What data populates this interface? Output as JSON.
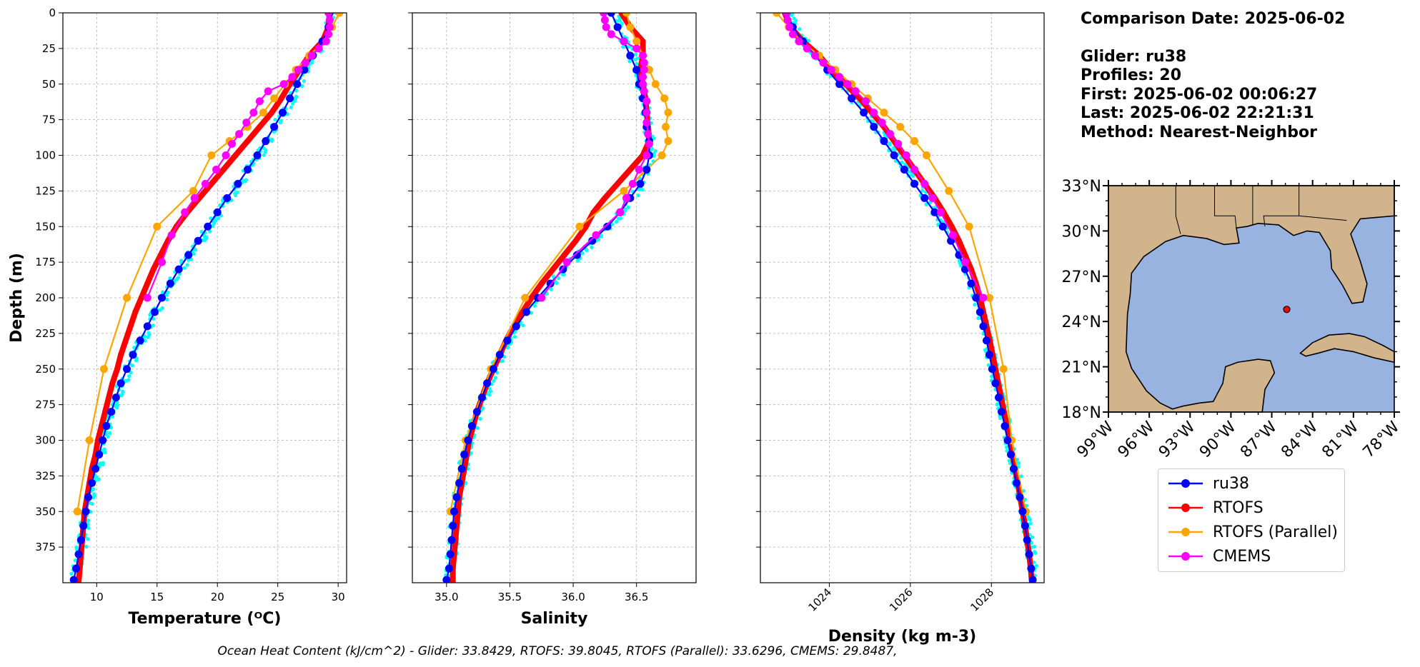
{
  "info": {
    "comparison_date": "Comparison Date: 2025-06-02",
    "glider": "Glider: ru38",
    "profiles": "Profiles: 20",
    "first": "First: 2025-06-02 00:06:27",
    "last": "Last: 2025-06-02 22:21:31",
    "method": "Method: Nearest-Neighbor"
  },
  "footer": "Ocean Heat Content (kJ/cm^2) - Glider: 33.8429,  RTOFS: 39.8045,  RTOFS (Parallel): 33.6296,  CMEMS: 29.8487,",
  "legend": [
    {
      "name": "ru38",
      "color": "#0000ff"
    },
    {
      "name": "RTOFS",
      "color": "#ff0000"
    },
    {
      "name": "RTOFS (Parallel)",
      "color": "#ffa500"
    },
    {
      "name": "CMEMS",
      "color": "#ff00ff"
    }
  ],
  "colors": {
    "glider_points": "#00ffff",
    "land": "#d2b48c",
    "ocean": "#99b3e0"
  },
  "map": {
    "lat_ticks": [
      "33°N",
      "30°N",
      "27°N",
      "24°N",
      "21°N",
      "18°N"
    ],
    "lon_ticks": [
      "99°W",
      "96°W",
      "93°W",
      "90°W",
      "87°W",
      "84°W",
      "81°W",
      "78°W"
    ],
    "extent": {
      "lon": [
        -99,
        -78
      ],
      "lat": [
        18,
        33
      ]
    },
    "glider_position": {
      "lon": -85.9,
      "lat": 24.8
    }
  },
  "chart_data": [
    {
      "type": "line",
      "xlabel": "Temperature (ᴼC)",
      "ylabel": "Depth (m)",
      "xlim": [
        7.2,
        30.7
      ],
      "ylim": [
        400,
        0
      ],
      "xticks": [
        "10",
        "15",
        "20",
        "25",
        "30"
      ],
      "xtick_values": [
        10,
        15,
        20,
        25,
        30
      ],
      "yticks": [
        "0",
        "25",
        "50",
        "75",
        "100",
        "125",
        "150",
        "175",
        "200",
        "225",
        "250",
        "275",
        "300",
        "325",
        "350",
        "375"
      ],
      "grid": true,
      "series": [
        {
          "name": "ru38",
          "depth": [
            0,
            10,
            20,
            30,
            40,
            50,
            60,
            70,
            80,
            90,
            100,
            110,
            120,
            130,
            140,
            150,
            160,
            170,
            180,
            190,
            200,
            210,
            220,
            230,
            240,
            250,
            260,
            270,
            280,
            290,
            300,
            310,
            320,
            330,
            340,
            350,
            360,
            370,
            380,
            390,
            398
          ],
          "values": [
            29.3,
            29.2,
            28.7,
            27.9,
            27.2,
            26.6,
            26.0,
            25.4,
            24.7,
            24.0,
            23.3,
            22.5,
            21.7,
            20.8,
            20.0,
            19.2,
            18.4,
            17.6,
            16.8,
            16.1,
            15.4,
            14.8,
            14.2,
            13.6,
            13.0,
            12.5,
            12.0,
            11.6,
            11.2,
            10.8,
            10.5,
            10.2,
            9.9,
            9.6,
            9.3,
            9.1,
            8.9,
            8.7,
            8.5,
            8.3,
            8.1
          ]
        },
        {
          "name": "RTOFS",
          "depth": [
            0,
            10,
            20,
            30,
            40,
            50,
            60,
            70,
            80,
            90,
            100,
            110,
            120,
            130,
            140,
            150,
            160,
            170,
            180,
            190,
            200,
            210,
            220,
            230,
            240,
            250,
            260,
            270,
            280,
            290,
            300,
            310,
            320,
            330,
            340,
            350,
            360,
            370,
            380,
            390,
            400
          ],
          "values": [
            29.3,
            29.2,
            28.7,
            27.6,
            26.8,
            26.0,
            25.3,
            24.5,
            23.5,
            22.5,
            21.5,
            20.5,
            19.5,
            18.5,
            17.5,
            16.6,
            15.9,
            15.3,
            14.7,
            14.2,
            13.7,
            13.2,
            12.8,
            12.4,
            12.0,
            11.7,
            11.3,
            11.0,
            10.7,
            10.4,
            10.1,
            9.9,
            9.6,
            9.4,
            9.2,
            9.0,
            8.9,
            8.8,
            8.7,
            8.6,
            8.5
          ]
        },
        {
          "name": "RTOFS (Parallel)",
          "depth": [
            0,
            10,
            20,
            30,
            40,
            50,
            60,
            70,
            80,
            90,
            100,
            125,
            150,
            200,
            250,
            300,
            350
          ],
          "values": [
            30.1,
            29.5,
            28.8,
            27.6,
            26.5,
            25.6,
            24.7,
            23.8,
            22.5,
            21.0,
            19.5,
            18.0,
            15.0,
            12.5,
            10.6,
            9.4,
            8.4
          ]
        },
        {
          "name": "CMEMS",
          "depth": [
            0,
            5,
            10,
            15,
            20,
            25,
            30,
            35,
            40,
            45,
            50,
            55,
            62,
            70,
            77,
            85,
            92,
            100,
            110,
            120,
            130,
            140,
            156,
            175,
            200
          ],
          "values": [
            29.2,
            29.3,
            29.3,
            29.2,
            29.0,
            28.4,
            27.8,
            27.3,
            26.7,
            26.2,
            25.5,
            24.2,
            23.5,
            23.0,
            22.4,
            21.8,
            21.2,
            20.7,
            19.9,
            19.0,
            18.1,
            17.3,
            16.2,
            15.4,
            14.2
          ]
        }
      ]
    },
    {
      "type": "line",
      "xlabel": "Salinity",
      "xlim": [
        34.73,
        36.97
      ],
      "ylim": [
        400,
        0
      ],
      "xticks": [
        "35.0",
        "35.5",
        "36.0",
        "36.5"
      ],
      "xtick_values": [
        35.0,
        35.5,
        36.0,
        36.5
      ],
      "grid": true,
      "series": [
        {
          "name": "ru38",
          "depth": [
            0,
            10,
            20,
            30,
            40,
            50,
            60,
            70,
            80,
            90,
            100,
            110,
            120,
            130,
            140,
            150,
            160,
            170,
            180,
            190,
            200,
            210,
            220,
            230,
            240,
            250,
            260,
            270,
            280,
            290,
            300,
            310,
            320,
            330,
            340,
            350,
            360,
            370,
            380,
            390,
            398
          ],
          "values": [
            36.3,
            36.35,
            36.4,
            36.45,
            36.5,
            36.52,
            36.55,
            36.57,
            36.58,
            36.6,
            36.6,
            36.58,
            36.53,
            36.45,
            36.37,
            36.27,
            36.15,
            36.03,
            35.92,
            35.82,
            35.72,
            35.63,
            35.55,
            35.48,
            35.42,
            35.37,
            35.32,
            35.28,
            35.24,
            35.2,
            35.17,
            35.14,
            35.12,
            35.1,
            35.08,
            35.06,
            35.05,
            35.04,
            35.03,
            35.02,
            35.0
          ]
        },
        {
          "name": "RTOFS",
          "depth": [
            0,
            10,
            20,
            30,
            40,
            50,
            60,
            70,
            80,
            90,
            100,
            110,
            120,
            130,
            140,
            150,
            160,
            170,
            180,
            190,
            200,
            210,
            220,
            230,
            240,
            250,
            260,
            270,
            280,
            290,
            300,
            310,
            320,
            330,
            340,
            350,
            360,
            370,
            380,
            390,
            400
          ],
          "values": [
            36.38,
            36.45,
            36.55,
            36.55,
            36.53,
            36.55,
            36.57,
            36.58,
            36.59,
            36.6,
            36.55,
            36.45,
            36.35,
            36.25,
            36.16,
            36.1,
            36.02,
            35.93,
            35.84,
            35.75,
            35.67,
            35.6,
            35.53,
            35.47,
            35.42,
            35.37,
            35.32,
            35.28,
            35.24,
            35.21,
            35.18,
            35.16,
            35.14,
            35.12,
            35.1,
            35.09,
            35.08,
            35.07,
            35.06,
            35.05,
            35.05
          ]
        },
        {
          "name": "RTOFS (Parallel)",
          "depth": [
            0,
            10,
            20,
            30,
            40,
            50,
            60,
            70,
            80,
            90,
            100,
            125,
            150,
            200,
            250,
            300,
            350
          ],
          "values": [
            36.42,
            36.45,
            36.5,
            36.55,
            36.6,
            36.65,
            36.72,
            36.75,
            36.73,
            36.75,
            36.7,
            36.4,
            36.05,
            35.62,
            35.35,
            35.15,
            35.03
          ]
        },
        {
          "name": "CMEMS",
          "depth": [
            0,
            5,
            10,
            15,
            20,
            25,
            30,
            35,
            40,
            45,
            50,
            55,
            62,
            70,
            77,
            85,
            92,
            100,
            110,
            120,
            130,
            140,
            156,
            175,
            200
          ],
          "values": [
            36.24,
            36.25,
            36.26,
            36.3,
            36.4,
            36.5,
            36.55,
            36.56,
            36.56,
            36.55,
            36.55,
            36.56,
            36.58,
            36.58,
            36.58,
            36.59,
            36.6,
            36.58,
            36.52,
            36.47,
            36.42,
            36.37,
            36.18,
            35.95,
            35.75
          ]
        }
      ]
    },
    {
      "type": "line",
      "xlabel": "Density (kg m-3)",
      "xlim": [
        1022.3,
        1029.3
      ],
      "ylim": [
        400,
        0
      ],
      "xticks": [
        "1024",
        "1026",
        "1028"
      ],
      "xtick_values": [
        1024,
        1026,
        1028
      ],
      "grid": true,
      "series": [
        {
          "name": "ru38",
          "depth": [
            0,
            10,
            20,
            30,
            40,
            50,
            60,
            70,
            80,
            90,
            100,
            110,
            120,
            130,
            140,
            150,
            160,
            170,
            180,
            190,
            200,
            210,
            220,
            230,
            240,
            250,
            260,
            270,
            280,
            290,
            300,
            310,
            320,
            330,
            340,
            350,
            360,
            370,
            380,
            390,
            398
          ],
          "values": [
            1022.95,
            1023.1,
            1023.35,
            1023.65,
            1023.95,
            1024.25,
            1024.55,
            1024.85,
            1025.1,
            1025.35,
            1025.6,
            1025.85,
            1026.1,
            1026.35,
            1026.6,
            1026.8,
            1027.0,
            1027.2,
            1027.35,
            1027.5,
            1027.62,
            1027.72,
            1027.8,
            1027.88,
            1027.95,
            1028.02,
            1028.1,
            1028.18,
            1028.25,
            1028.33,
            1028.4,
            1028.48,
            1028.55,
            1028.62,
            1028.7,
            1028.77,
            1028.83,
            1028.88,
            1028.93,
            1028.98,
            1029.02
          ]
        },
        {
          "name": "RTOFS",
          "depth": [
            0,
            10,
            20,
            30,
            40,
            50,
            60,
            70,
            80,
            90,
            100,
            110,
            120,
            130,
            140,
            150,
            160,
            170,
            180,
            190,
            200,
            210,
            220,
            230,
            240,
            250,
            260,
            270,
            280,
            290,
            300,
            310,
            320,
            330,
            340,
            350,
            360,
            370,
            380,
            390,
            400
          ],
          "values": [
            1022.9,
            1023.05,
            1023.35,
            1023.75,
            1024.05,
            1024.4,
            1024.75,
            1025.05,
            1025.35,
            1025.6,
            1025.85,
            1026.1,
            1026.35,
            1026.6,
            1026.82,
            1027.02,
            1027.2,
            1027.35,
            1027.5,
            1027.62,
            1027.72,
            1027.8,
            1027.88,
            1027.96,
            1028.03,
            1028.1,
            1028.17,
            1028.24,
            1028.31,
            1028.38,
            1028.45,
            1028.52,
            1028.58,
            1028.65,
            1028.71,
            1028.77,
            1028.83,
            1028.88,
            1028.93,
            1028.97,
            1029.0
          ]
        },
        {
          "name": "RTOFS (Parallel)",
          "depth": [
            0,
            10,
            20,
            30,
            40,
            50,
            60,
            70,
            80,
            90,
            100,
            125,
            150,
            200,
            250,
            300,
            350
          ],
          "values": [
            1022.7,
            1023.0,
            1023.3,
            1023.75,
            1024.15,
            1024.55,
            1024.95,
            1025.35,
            1025.75,
            1026.1,
            1026.4,
            1026.95,
            1027.45,
            1027.95,
            1028.3,
            1028.5,
            1028.85
          ]
        },
        {
          "name": "CMEMS",
          "depth": [
            0,
            5,
            10,
            15,
            20,
            25,
            30,
            35,
            40,
            45,
            50,
            55,
            62,
            70,
            77,
            85,
            92,
            100,
            110,
            120,
            130,
            140,
            156,
            175,
            200
          ],
          "values": [
            1022.95,
            1022.97,
            1023.02,
            1023.1,
            1023.25,
            1023.45,
            1023.65,
            1023.85,
            1024.05,
            1024.25,
            1024.45,
            1024.65,
            1024.9,
            1025.1,
            1025.3,
            1025.5,
            1025.7,
            1025.9,
            1026.1,
            1026.35,
            1026.55,
            1026.75,
            1027.05,
            1027.35,
            1027.8
          ]
        }
      ]
    }
  ]
}
